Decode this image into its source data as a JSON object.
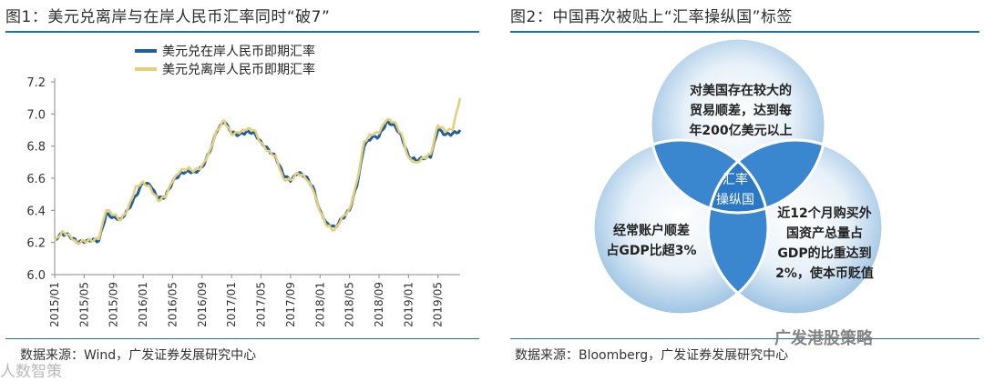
{
  "left_panel": {
    "title": "图1：美元兑离岸与在岸人民币汇率同时“破7”",
    "source": "数据来源：Wind，广发证券发展研究中心"
  },
  "right_panel": {
    "title": "图2：中国再次被贴上“汇率操纵国”标签",
    "source": "数据来源：Bloomberg，广发证券发展研究中心",
    "venn": {
      "top": [
        "对美国存在较大的",
        "贸易顺差，达到每",
        "年200亿美元以上"
      ],
      "left": [
        "经常账户顺差",
        "占GDP比超3%"
      ],
      "right": [
        "近12个月购买外",
        "国资产总量占",
        "GDP的比重达到",
        "2%，使本币贬值"
      ],
      "center": [
        "汇率",
        "操纵国"
      ]
    }
  },
  "watermarks": {
    "wechat": "广发港股策略",
    "corner": "人数智策"
  },
  "colors": {
    "onshore": "#1f5f9e",
    "offshore": "#e6cf7a",
    "rule": "#1f6fb3"
  },
  "chart_data": {
    "type": "line",
    "title": "",
    "xlabel": "",
    "ylabel": "",
    "ylim": [
      6.0,
      7.2
    ],
    "yticks": [
      "6.0",
      "6.2",
      "6.4",
      "6.6",
      "6.8",
      "7.0",
      "7.2"
    ],
    "xticks": [
      "2015/01",
      "2015/05",
      "2015/09",
      "2016/01",
      "2016/05",
      "2016/09",
      "2017/01",
      "2017/05",
      "2017/09",
      "2018/01",
      "2018/05",
      "2018/09",
      "2019/01",
      "2019/05"
    ],
    "legend_position": "top",
    "x": [
      "2015/01",
      "2015/02",
      "2015/03",
      "2015/04",
      "2015/05",
      "2015/06",
      "2015/07",
      "2015/08",
      "2015/09",
      "2015/10",
      "2015/11",
      "2015/12",
      "2016/01",
      "2016/02",
      "2016/03",
      "2016/04",
      "2016/05",
      "2016/06",
      "2016/07",
      "2016/08",
      "2016/09",
      "2016/10",
      "2016/11",
      "2016/12",
      "2017/01",
      "2017/02",
      "2017/03",
      "2017/04",
      "2017/05",
      "2017/06",
      "2017/07",
      "2017/08",
      "2017/09",
      "2017/10",
      "2017/11",
      "2017/12",
      "2018/01",
      "2018/02",
      "2018/03",
      "2018/04",
      "2018/05",
      "2018/06",
      "2018/07",
      "2018/08",
      "2018/09",
      "2018/10",
      "2018/11",
      "2018/12",
      "2019/01",
      "2019/02",
      "2019/03",
      "2019/04",
      "2019/05",
      "2019/06",
      "2019/07",
      "2019/08"
    ],
    "series": [
      {
        "name": "美元兑在岸人民币即期汇率",
        "values": [
          6.22,
          6.26,
          6.24,
          6.2,
          6.2,
          6.21,
          6.21,
          6.38,
          6.36,
          6.35,
          6.41,
          6.49,
          6.57,
          6.55,
          6.47,
          6.48,
          6.58,
          6.63,
          6.65,
          6.64,
          6.67,
          6.76,
          6.89,
          6.95,
          6.88,
          6.87,
          6.89,
          6.89,
          6.83,
          6.78,
          6.73,
          6.62,
          6.58,
          6.63,
          6.61,
          6.55,
          6.4,
          6.32,
          6.3,
          6.35,
          6.4,
          6.55,
          6.8,
          6.85,
          6.86,
          6.95,
          6.94,
          6.87,
          6.74,
          6.71,
          6.72,
          6.73,
          6.9,
          6.87,
          6.88,
          6.9
        ]
      },
      {
        "name": "美元兑离岸人民币即期汇率",
        "values": [
          6.21,
          6.27,
          6.25,
          6.2,
          6.21,
          6.21,
          6.22,
          6.4,
          6.37,
          6.34,
          6.42,
          6.55,
          6.58,
          6.54,
          6.46,
          6.48,
          6.58,
          6.64,
          6.66,
          6.65,
          6.68,
          6.77,
          6.9,
          6.96,
          6.87,
          6.88,
          6.9,
          6.9,
          6.82,
          6.77,
          6.74,
          6.6,
          6.59,
          6.63,
          6.6,
          6.53,
          6.39,
          6.3,
          6.28,
          6.36,
          6.41,
          6.58,
          6.83,
          6.87,
          6.88,
          6.96,
          6.95,
          6.88,
          6.73,
          6.7,
          6.73,
          6.75,
          6.93,
          6.89,
          6.9,
          7.1
        ]
      }
    ]
  }
}
